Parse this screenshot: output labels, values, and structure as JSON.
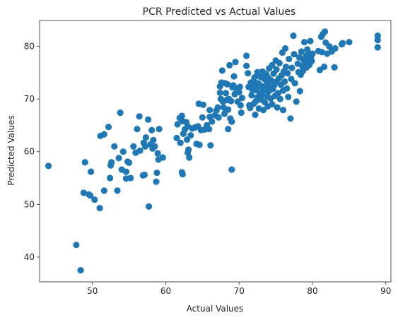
{
  "chart_data": {
    "type": "scatter",
    "title": "PCR Predicted vs Actual Values",
    "xlabel": "Actual Values",
    "ylabel": "Predicted Values",
    "xlim": [
      42.8,
      90.7
    ],
    "ylim": [
      35.3,
      84.9
    ],
    "x_ticks": [
      50,
      60,
      70,
      80,
      90
    ],
    "y_ticks": [
      40,
      50,
      60,
      70,
      80
    ],
    "grid": false,
    "legend": "none",
    "color": "#1f77b4",
    "series": [
      {
        "points": [
          [
            44.0,
            57.3
          ],
          [
            47.8,
            42.3
          ],
          [
            48.4,
            37.5
          ],
          [
            48.8,
            52.2
          ],
          [
            49.0,
            58.0
          ],
          [
            49.5,
            51.9
          ],
          [
            49.7,
            51.7
          ],
          [
            49.8,
            56.2
          ],
          [
            50.3,
            50.9
          ],
          [
            51.0,
            49.3
          ],
          [
            51.1,
            63.0
          ],
          [
            51.6,
            63.3
          ],
          [
            51.6,
            52.6
          ],
          [
            52.2,
            64.7
          ],
          [
            52.4,
            55.0
          ],
          [
            52.5,
            57.4
          ],
          [
            52.6,
            58.0
          ],
          [
            53.0,
            61.0
          ],
          [
            53.4,
            52.6
          ],
          [
            53.6,
            58.8
          ],
          [
            53.8,
            67.4
          ],
          [
            54.0,
            56.6
          ],
          [
            54.2,
            60.0
          ],
          [
            54.6,
            56.2
          ],
          [
            54.6,
            54.9
          ],
          [
            54.8,
            58.1
          ],
          [
            55.0,
            57.9
          ],
          [
            55.2,
            55.0
          ],
          [
            55.6,
            61.0
          ],
          [
            55.9,
            59.8
          ],
          [
            56.1,
            64.3
          ],
          [
            56.4,
            66.7
          ],
          [
            56.5,
            60.2
          ],
          [
            56.9,
            55.5
          ],
          [
            57.1,
            55.6
          ],
          [
            57.0,
            61.7
          ],
          [
            57.2,
            61.0
          ],
          [
            57.3,
            62.7
          ],
          [
            57.6,
            66.1
          ],
          [
            57.7,
            49.6
          ],
          [
            57.9,
            61.4
          ],
          [
            58.1,
            64.1
          ],
          [
            58.2,
            60.6
          ],
          [
            58.3,
            62.2
          ],
          [
            58.5,
            61.0
          ],
          [
            58.7,
            54.3
          ],
          [
            58.8,
            56.0
          ],
          [
            58.9,
            59.7
          ],
          [
            59.0,
            58.5
          ],
          [
            59.1,
            64.3
          ],
          [
            59.6,
            58.9
          ],
          [
            61.5,
            62.6
          ],
          [
            61.6,
            65.2
          ],
          [
            61.9,
            66.4
          ],
          [
            62.0,
            61.7
          ],
          [
            62.2,
            66.8
          ],
          [
            62.2,
            56.1
          ],
          [
            62.3,
            65.8
          ],
          [
            62.3,
            55.7
          ],
          [
            62.4,
            63.4
          ],
          [
            62.6,
            64.2
          ],
          [
            62.8,
            65.6
          ],
          [
            62.9,
            62.3
          ],
          [
            63.0,
            59.8
          ],
          [
            63.0,
            64.8
          ],
          [
            63.1,
            60.4
          ],
          [
            63.2,
            58.9
          ],
          [
            63.4,
            63.1
          ],
          [
            63.6,
            64.4
          ],
          [
            64.0,
            64.6
          ],
          [
            64.2,
            61.5
          ],
          [
            64.4,
            64.8
          ],
          [
            64.5,
            69.1
          ],
          [
            64.6,
            61.3
          ],
          [
            64.8,
            64.1
          ],
          [
            65.0,
            66.5
          ],
          [
            65.1,
            68.9
          ],
          [
            65.3,
            64.2
          ],
          [
            65.6,
            65.0
          ],
          [
            65.9,
            64.3
          ],
          [
            66.0,
            66.6
          ],
          [
            66.0,
            67.9
          ],
          [
            66.1,
            61.2
          ],
          [
            66.3,
            65.7
          ],
          [
            66.7,
            66.9
          ],
          [
            66.9,
            67.8
          ],
          [
            67.1,
            68.4
          ],
          [
            67.2,
            66.5
          ],
          [
            67.4,
            72.4
          ],
          [
            67.4,
            71.2
          ],
          [
            67.5,
            70.0
          ],
          [
            67.6,
            73.1
          ],
          [
            67.7,
            75.4
          ],
          [
            67.8,
            69.5
          ],
          [
            67.9,
            68.4
          ],
          [
            68.0,
            67.2
          ],
          [
            68.1,
            73.0
          ],
          [
            68.2,
            71.1
          ],
          [
            68.3,
            69.8
          ],
          [
            68.4,
            72.8
          ],
          [
            68.5,
            68.0
          ],
          [
            68.5,
            64.3
          ],
          [
            68.6,
            70.0
          ],
          [
            68.7,
            76.4
          ],
          [
            68.8,
            66.3
          ],
          [
            68.9,
            69.6
          ],
          [
            69.0,
            56.6
          ],
          [
            69.0,
            65.7
          ],
          [
            69.1,
            72.2
          ],
          [
            69.2,
            72.6
          ],
          [
            69.3,
            74.3
          ],
          [
            69.4,
            70.9
          ],
          [
            69.5,
            77.0
          ],
          [
            69.6,
            72.0
          ],
          [
            69.8,
            69.5
          ],
          [
            70.0,
            71.3
          ],
          [
            70.1,
            72.3
          ],
          [
            70.2,
            68.8
          ],
          [
            70.3,
            67.4
          ],
          [
            70.4,
            70.2
          ],
          [
            71.0,
            78.2
          ],
          [
            71.0,
            76.3
          ],
          [
            71.2,
            74.9
          ],
          [
            71.3,
            72.3
          ],
          [
            71.4,
            68.8
          ],
          [
            71.5,
            68.3
          ],
          [
            71.6,
            73.1
          ],
          [
            71.7,
            70.7
          ],
          [
            71.8,
            71.8
          ],
          [
            71.9,
            72.6
          ],
          [
            72.0,
            69.1
          ],
          [
            72.0,
            73.4
          ],
          [
            72.1,
            74.1
          ],
          [
            72.2,
            67.0
          ],
          [
            72.3,
            71.7
          ],
          [
            72.3,
            69.6
          ],
          [
            72.4,
            72.1
          ],
          [
            72.5,
            75.1
          ],
          [
            72.5,
            70.3
          ],
          [
            72.6,
            73.0
          ],
          [
            72.7,
            68.2
          ],
          [
            72.8,
            71.2
          ],
          [
            72.9,
            74.2
          ],
          [
            73.0,
            69.9
          ],
          [
            73.0,
            72.5
          ],
          [
            73.1,
            70.8
          ],
          [
            73.2,
            75.2
          ],
          [
            73.3,
            71.6
          ],
          [
            73.3,
            67.9
          ],
          [
            73.4,
            73.8
          ],
          [
            73.5,
            69.4
          ],
          [
            73.6,
            72.0
          ],
          [
            73.7,
            74.7
          ],
          [
            73.8,
            70.5
          ],
          [
            73.8,
            72.9
          ],
          [
            73.9,
            68.6
          ],
          [
            74.0,
            71.4
          ],
          [
            74.0,
            74.0
          ],
          [
            74.1,
            75.8
          ],
          [
            74.2,
            72.3
          ],
          [
            74.3,
            70.1
          ],
          [
            74.4,
            73.5
          ],
          [
            74.5,
            76.4
          ],
          [
            74.5,
            69.0
          ],
          [
            74.6,
            71.9
          ],
          [
            74.7,
            74.8
          ],
          [
            74.8,
            72.6
          ],
          [
            74.9,
            70.6
          ],
          [
            75.0,
            73.2
          ],
          [
            75.0,
            77.3
          ],
          [
            75.1,
            75.6
          ],
          [
            75.2,
            68.4
          ],
          [
            75.3,
            71.1
          ],
          [
            75.4,
            73.9
          ],
          [
            75.5,
            76.8
          ],
          [
            75.6,
            70.0
          ],
          [
            75.7,
            72.7
          ],
          [
            75.8,
            74.5
          ],
          [
            75.9,
            78.8
          ],
          [
            76.0,
            71.6
          ],
          [
            76.0,
            67.9
          ],
          [
            76.1,
            75.2
          ],
          [
            76.2,
            73.3
          ],
          [
            76.3,
            79.6
          ],
          [
            76.4,
            76.1
          ],
          [
            76.5,
            72.0
          ],
          [
            76.6,
            74.9
          ],
          [
            76.7,
            70.4
          ],
          [
            76.8,
            77.6
          ],
          [
            77.0,
            66.3
          ],
          [
            77.1,
            73.8
          ],
          [
            77.2,
            75.9
          ],
          [
            77.4,
            82.0
          ],
          [
            77.5,
            78.5
          ],
          [
            77.6,
            73.0
          ],
          [
            77.8,
            69.5
          ],
          [
            78.0,
            76.7
          ],
          [
            78.1,
            75.1
          ],
          [
            78.2,
            77.9
          ],
          [
            78.3,
            71.5
          ],
          [
            78.4,
            74.6
          ],
          [
            78.5,
            79.0
          ],
          [
            78.6,
            76.3
          ],
          [
            78.7,
            75.3
          ],
          [
            78.8,
            77.4
          ],
          [
            78.9,
            80.8
          ],
          [
            79.0,
            76.9
          ],
          [
            79.1,
            78.2
          ],
          [
            79.2,
            76.0
          ],
          [
            79.3,
            79.4
          ],
          [
            79.4,
            77.7
          ],
          [
            79.5,
            78.7
          ],
          [
            79.6,
            76.5
          ],
          [
            79.7,
            81.0
          ],
          [
            79.8,
            78.0
          ],
          [
            79.9,
            77.2
          ],
          [
            80.0,
            78.6
          ],
          [
            80.8,
            79.1
          ],
          [
            81.0,
            75.5
          ],
          [
            81.2,
            81.8
          ],
          [
            81.3,
            78.9
          ],
          [
            81.4,
            82.3
          ],
          [
            81.6,
            76.1
          ],
          [
            81.7,
            82.8
          ],
          [
            81.8,
            80.7
          ],
          [
            82.0,
            78.6
          ],
          [
            82.3,
            80.0
          ],
          [
            82.6,
            79.0
          ],
          [
            83.0,
            76.0
          ],
          [
            83.1,
            79.6
          ],
          [
            84.0,
            80.4
          ],
          [
            84.1,
            80.6
          ],
          [
            85.0,
            80.8
          ],
          [
            88.9,
            82.0
          ],
          [
            88.9,
            81.2
          ],
          [
            88.9,
            79.8
          ]
        ]
      }
    ]
  }
}
